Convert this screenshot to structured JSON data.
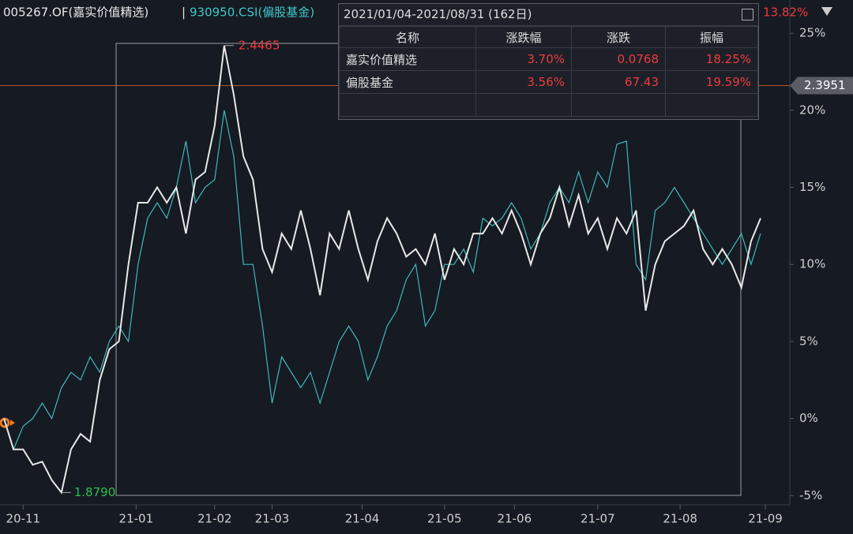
{
  "chart_data": {
    "type": "line",
    "title_parts": [
      "005267.OF(嘉实价值精选)",
      "|",
      "930950.CSI(偏股基金)"
    ],
    "top_right_value": "13.82%",
    "xlim": [
      0,
      79
    ],
    "xticks": [
      {
        "value": 2,
        "label": "20-11"
      },
      {
        "value": 13.8,
        "label": "21-01"
      },
      {
        "value": 22,
        "label": "21-02"
      },
      {
        "value": 28,
        "label": "21-03"
      },
      {
        "value": 37.4,
        "label": "21-04"
      },
      {
        "value": 46,
        "label": "21-05"
      },
      {
        "value": 53.3,
        "label": "21-06"
      },
      {
        "value": 62,
        "label": "21-07"
      },
      {
        "value": 70.6,
        "label": "21-08"
      },
      {
        "value": 79.5,
        "label": "21-09"
      }
    ],
    "ylim": [
      -5.6,
      26.9
    ],
    "yticks": [
      {
        "value": -5,
        "label": "-5%"
      },
      {
        "value": 0,
        "label": "0%"
      },
      {
        "value": 5,
        "label": "5%"
      },
      {
        "value": 10,
        "label": "10%"
      },
      {
        "value": 15,
        "label": "15%"
      },
      {
        "value": 20,
        "label": "20%"
      },
      {
        "value": 25,
        "label": "25%"
      }
    ],
    "ref_line": {
      "value": 21.6,
      "label": "2.3951",
      "color": "#b5562a"
    },
    "annotations": {
      "high": "2.4465",
      "low": "1.8790"
    },
    "series": [
      {
        "name": "930950.CSI",
        "color": "#3fb9b9",
        "values": [
          0,
          -2,
          -0.5,
          0,
          1,
          0,
          2,
          3,
          2.5,
          4,
          3,
          5,
          6,
          5,
          10,
          13,
          14,
          13,
          15,
          18,
          14,
          15,
          15.5,
          20,
          17,
          10,
          10,
          6,
          1,
          4,
          3,
          2,
          3,
          1,
          3,
          5,
          6,
          5,
          2.5,
          4,
          6,
          7,
          9,
          10,
          6,
          7,
          10,
          10,
          11,
          9.5,
          13,
          12.5,
          13,
          14,
          13,
          11,
          12,
          14,
          15,
          14,
          16,
          14,
          16,
          15,
          17.8,
          18,
          10,
          9,
          13.5,
          14,
          15,
          14,
          13,
          12,
          11,
          10,
          11,
          12,
          10,
          12
        ]
      },
      {
        "name": "005267.OF",
        "color": "#e8e8e8",
        "values": [
          0,
          -2,
          -2,
          -3,
          -2.8,
          -4,
          -4.8,
          -2,
          -1,
          -1.5,
          2.5,
          4.5,
          5,
          10,
          14,
          14,
          15,
          14,
          15,
          12,
          15.5,
          16,
          19,
          24.2,
          21,
          17,
          15.5,
          11,
          9.5,
          12,
          11,
          13.5,
          11,
          8,
          12,
          11,
          13.5,
          11,
          9,
          11.5,
          13,
          12,
          10.5,
          11,
          10,
          12,
          9,
          11,
          10,
          12,
          12,
          13,
          12,
          13.5,
          12,
          10,
          12,
          13,
          15,
          12.5,
          14.5,
          12,
          13,
          11,
          13,
          12,
          13.5,
          7,
          10,
          11.5,
          12,
          12.5,
          13.5,
          11,
          10,
          11,
          10,
          8.5,
          11.5,
          13
        ]
      }
    ],
    "table": {
      "title": "2021/01/04-2021/08/31 (162日)",
      "columns": [
        "名称",
        "涨跌幅",
        "涨跌",
        "振幅"
      ],
      "rows": [
        [
          "嘉实价值精选",
          "3.70%",
          "0.0768",
          "18.25%"
        ],
        [
          "偏股基金",
          "3.56%",
          "67.43",
          "19.59%"
        ]
      ]
    }
  }
}
